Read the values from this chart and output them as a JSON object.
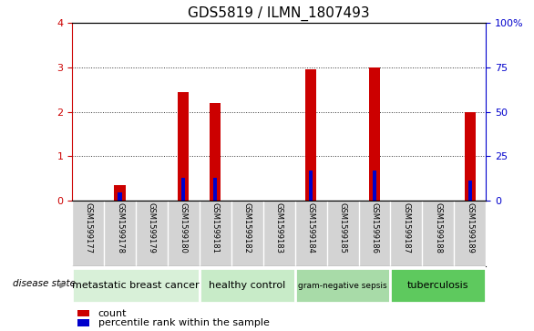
{
  "title": "GDS5819 / ILMN_1807493",
  "samples": [
    "GSM1599177",
    "GSM1599178",
    "GSM1599179",
    "GSM1599180",
    "GSM1599181",
    "GSM1599182",
    "GSM1599183",
    "GSM1599184",
    "GSM1599185",
    "GSM1599186",
    "GSM1599187",
    "GSM1599188",
    "GSM1599189"
  ],
  "count_values": [
    0,
    0.35,
    0,
    2.45,
    2.2,
    0,
    0,
    2.95,
    0,
    3.0,
    0,
    0,
    2.0
  ],
  "percentile_values": [
    0,
    0.18,
    0,
    0.5,
    0.5,
    0,
    0,
    0.68,
    0,
    0.68,
    0,
    0,
    0.45
  ],
  "bar_width": 0.35,
  "blue_bar_width": 0.12,
  "ylim_left": [
    0,
    4
  ],
  "ylim_right": [
    0,
    100
  ],
  "yticks_left": [
    0,
    1,
    2,
    3,
    4
  ],
  "yticks_right": [
    0,
    25,
    50,
    75,
    100
  ],
  "ytick_labels_right": [
    "0",
    "25",
    "50",
    "75",
    "100%"
  ],
  "groups": [
    {
      "label": "metastatic breast cancer",
      "start": 0,
      "end": 4,
      "color": "#d8f0d8"
    },
    {
      "label": "healthy control",
      "start": 4,
      "end": 7,
      "color": "#c8ebc8"
    },
    {
      "label": "gram-negative sepsis",
      "start": 7,
      "end": 10,
      "color": "#a8dba8"
    },
    {
      "label": "tuberculosis",
      "start": 10,
      "end": 13,
      "color": "#5ec95e"
    }
  ],
  "disease_state_label": "disease state",
  "legend_count_label": "count",
  "legend_percentile_label": "percentile rank within the sample",
  "bar_color_red": "#cc0000",
  "bar_color_blue": "#0000cc",
  "tick_color_left": "#cc0000",
  "tick_color_right": "#0000cc",
  "background_color": "#ffffff",
  "plot_bg_color": "#ffffff",
  "grid_color": "#000000",
  "sample_bg_color": "#d3d3d3",
  "sample_sep_color": "#ffffff"
}
